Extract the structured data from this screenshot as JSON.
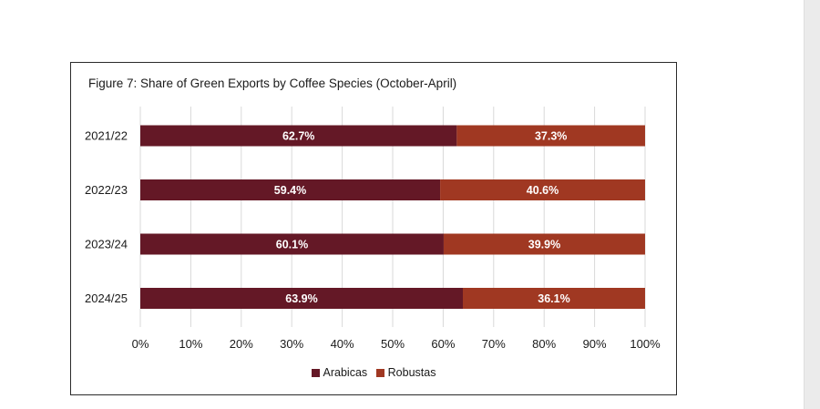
{
  "colors": {
    "arabicas": "#641826",
    "robustas": "#A03822",
    "gridline": "#d9d9d9"
  },
  "chart_data": {
    "type": "bar",
    "orientation": "horizontal",
    "stacked": true,
    "title": "Figure 7: Share of Green Exports by Coffee Species (October-April)",
    "categories": [
      "2021/22",
      "2022/23",
      "2023/24",
      "2024/25"
    ],
    "series": [
      {
        "name": "Arabicas",
        "values": [
          62.7,
          59.4,
          60.1,
          63.9
        ],
        "labels": [
          "62.7%",
          "59.4%",
          "60.1%",
          "63.9%"
        ]
      },
      {
        "name": "Robustas",
        "values": [
          37.3,
          40.6,
          39.9,
          36.1
        ],
        "labels": [
          "37.3%",
          "40.6%",
          "39.9%",
          "36.1%"
        ]
      }
    ],
    "xlim": [
      0,
      100
    ],
    "xticks": [
      "0%",
      "10%",
      "20%",
      "30%",
      "40%",
      "50%",
      "60%",
      "70%",
      "80%",
      "90%",
      "100%"
    ],
    "xlabel": "",
    "ylabel": "",
    "grid": "vertical",
    "legend": "bottom-center"
  }
}
